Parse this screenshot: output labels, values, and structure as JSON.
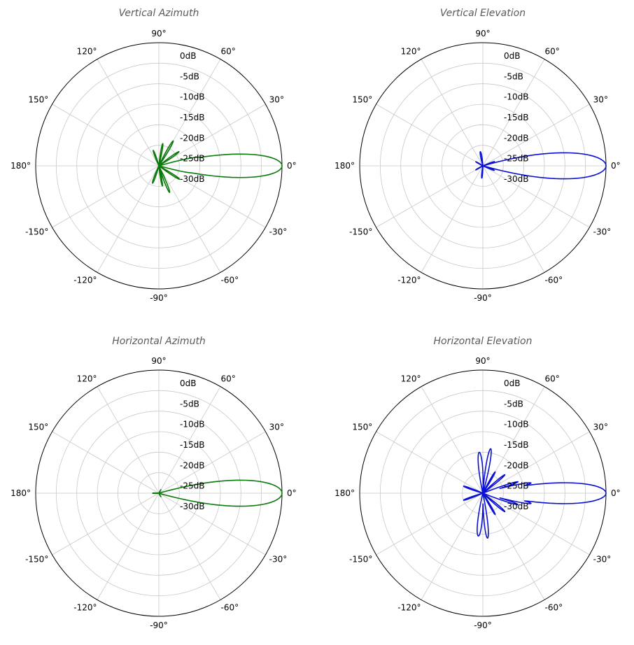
{
  "colors": {
    "green": "#0a7a0a",
    "blue": "#0a10d4"
  },
  "chart_data": [
    {
      "type": "polar",
      "title": "Vertical Azimuth",
      "color": "#0a7a0a",
      "angle_labels": [
        "0°",
        "30°",
        "60°",
        "90°",
        "120°",
        "150°",
        "180°",
        "-150°",
        "-120°",
        "-90°",
        "-60°",
        "-30°"
      ],
      "radial_labels": [
        "0dB",
        "-5dB",
        "-10dB",
        "-15dB",
        "-20dB",
        "-25dB",
        "-30dB"
      ],
      "rlim_db": [
        -30,
        0
      ],
      "lobes": [
        {
          "angle": 0,
          "gain_db": 0,
          "width": 4.5
        },
        {
          "angle": 7,
          "gain_db": -15.5,
          "width": 2
        },
        {
          "angle": -7,
          "gain_db": -15,
          "width": 2
        },
        {
          "angle": 12,
          "gain_db": -20,
          "width": 2
        },
        {
          "angle": -12,
          "gain_db": -22,
          "width": 2
        },
        {
          "angle": 35,
          "gain_db": -24,
          "width": 3
        },
        {
          "angle": -33,
          "gain_db": -24,
          "width": 3
        },
        {
          "angle": 60,
          "gain_db": -23,
          "width": 3
        },
        {
          "angle": -68,
          "gain_db": -23,
          "width": 3
        },
        {
          "angle": 80,
          "gain_db": -24.5,
          "width": 3
        },
        {
          "angle": -80,
          "gain_db": -25,
          "width": 3
        },
        {
          "angle": 110,
          "gain_db": -26,
          "width": 4
        },
        {
          "angle": -110,
          "gain_db": -25.5,
          "width": 4
        }
      ]
    },
    {
      "type": "polar",
      "title": "Vertical Elevation",
      "color": "#0a10d4",
      "angle_labels": [
        "0°",
        "30°",
        "60°",
        "90°",
        "120°",
        "150°",
        "180°",
        "-150°",
        "-120°",
        "-90°",
        "-60°",
        "-30°"
      ],
      "radial_labels": [
        "0dB",
        "-5dB",
        "-10dB",
        "-15dB",
        "-20dB",
        "-25dB",
        "-30dB"
      ],
      "rlim_db": [
        -30,
        0
      ],
      "lobes": [
        {
          "angle": 0,
          "gain_db": 0,
          "width": 5
        },
        {
          "angle": 7,
          "gain_db": -20,
          "width": 2
        },
        {
          "angle": -7,
          "gain_db": -22,
          "width": 2
        },
        {
          "angle": 20,
          "gain_db": -27,
          "width": 3
        },
        {
          "angle": -22,
          "gain_db": -27,
          "width": 3
        },
        {
          "angle": 100,
          "gain_db": -26.5,
          "width": 6
        },
        {
          "angle": -95,
          "gain_db": -27,
          "width": 5
        },
        {
          "angle": 150,
          "gain_db": -28,
          "width": 5
        },
        {
          "angle": -150,
          "gain_db": -28,
          "width": 5
        }
      ]
    },
    {
      "type": "polar",
      "title": "Horizontal Azimuth",
      "color": "#0a7a0a",
      "angle_labels": [
        "0°",
        "30°",
        "60°",
        "90°",
        "120°",
        "150°",
        "180°",
        "-150°",
        "-120°",
        "-90°",
        "-60°",
        "-30°"
      ],
      "radial_labels": [
        "0dB",
        "-5dB",
        "-10dB",
        "-15dB",
        "-20dB",
        "-25dB",
        "-30dB"
      ],
      "rlim_db": [
        -30,
        0
      ],
      "lobes": [
        {
          "angle": 0,
          "gain_db": 0,
          "width": 5
        },
        {
          "angle": -5,
          "gain_db": -22,
          "width": 2
        },
        {
          "angle": 6,
          "gain_db": -25,
          "width": 2
        },
        {
          "angle": -15,
          "gain_db": -28,
          "width": 3
        },
        {
          "angle": 15,
          "gain_db": -28.5,
          "width": 3
        },
        {
          "angle": 60,
          "gain_db": -29,
          "width": 6
        },
        {
          "angle": -60,
          "gain_db": -29,
          "width": 6
        },
        {
          "angle": 180,
          "gain_db": -28.5,
          "width": 8
        }
      ]
    },
    {
      "type": "polar",
      "title": "Horizontal Elevation",
      "color": "#0a10d4",
      "angle_labels": [
        "0°",
        "30°",
        "60°",
        "90°",
        "120°",
        "150°",
        "180°",
        "-150°",
        "-120°",
        "-90°",
        "-60°",
        "-30°"
      ],
      "radial_labels": [
        "0dB",
        "-5dB",
        "-10dB",
        "-15dB",
        "-20dB",
        "-25dB",
        "-30dB"
      ],
      "rlim_db": [
        -30,
        0
      ],
      "lobes": [
        {
          "angle": 0,
          "gain_db": 0,
          "width": 4
        },
        {
          "angle": 6,
          "gain_db": -12.5,
          "width": 2
        },
        {
          "angle": -6,
          "gain_db": -12.5,
          "width": 2
        },
        {
          "angle": 12,
          "gain_db": -18,
          "width": 2
        },
        {
          "angle": -12,
          "gain_db": -18,
          "width": 2
        },
        {
          "angle": 18,
          "gain_db": -21,
          "width": 2
        },
        {
          "angle": -18,
          "gain_db": -21,
          "width": 2
        },
        {
          "angle": 40,
          "gain_db": -23,
          "width": 2.5
        },
        {
          "angle": -40,
          "gain_db": -23,
          "width": 2.5
        },
        {
          "angle": 60,
          "gain_db": -24,
          "width": 2.5
        },
        {
          "angle": -60,
          "gain_db": -24,
          "width": 2.5
        },
        {
          "angle": 80,
          "gain_db": -19,
          "width": 3
        },
        {
          "angle": -84,
          "gain_db": -19,
          "width": 3
        },
        {
          "angle": 95,
          "gain_db": -20,
          "width": 4
        },
        {
          "angle": -96,
          "gain_db": -19.5,
          "width": 4
        },
        {
          "angle": 160,
          "gain_db": -25,
          "width": 3
        },
        {
          "angle": -160,
          "gain_db": -25,
          "width": 3
        }
      ]
    }
  ]
}
